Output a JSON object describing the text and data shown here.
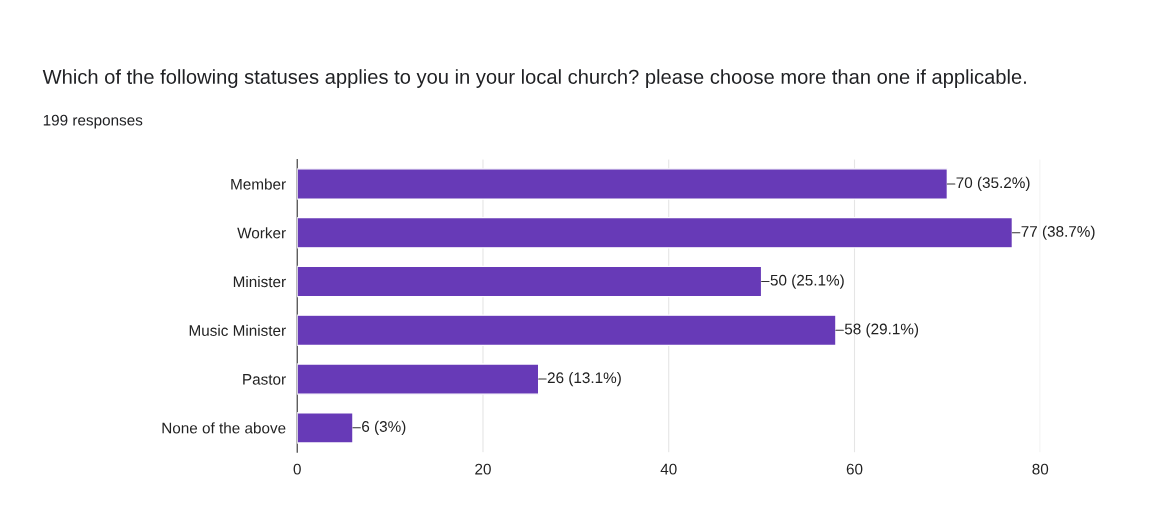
{
  "chart_data": {
    "type": "bar",
    "orientation": "horizontal",
    "title": "Which of the following statuses applies to you in your local church? please choose more than one if applicable.",
    "subtitle": "199 responses",
    "categories": [
      "Member",
      "Worker",
      "Minister",
      "Music Minister",
      "Pastor",
      "None of the above"
    ],
    "values": [
      70,
      77,
      50,
      58,
      26,
      6
    ],
    "value_labels": [
      "70 (35.2%)",
      "77 (38.7%)",
      "50 (25.1%)",
      "58 (29.1%)",
      "26 (13.1%)",
      "6 (3%)"
    ],
    "color": "#673ab7",
    "xlim": [
      0,
      80
    ],
    "xticks": [
      0,
      20,
      40,
      60,
      80
    ],
    "grid": "x",
    "legend": false
  }
}
